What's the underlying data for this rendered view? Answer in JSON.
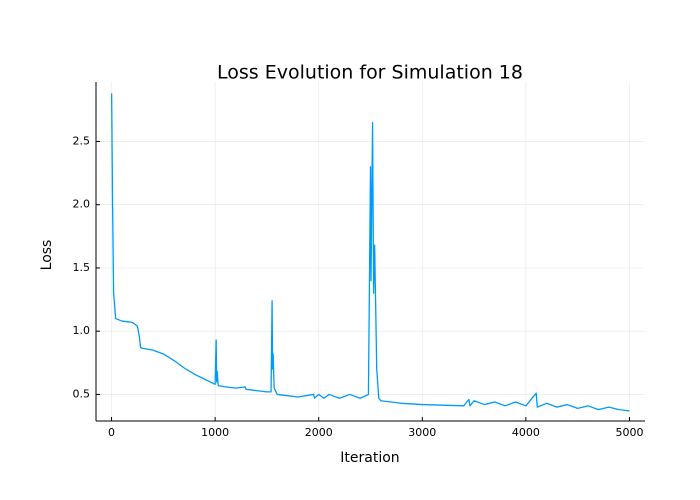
{
  "chart_data": {
    "type": "line",
    "title": "Loss Evolution for Simulation 18",
    "x_label": "Iteration",
    "y_label": "Loss",
    "x": [
      1,
      10,
      20,
      40,
      100,
      200,
      250,
      270,
      280,
      300,
      400,
      500,
      600,
      700,
      800,
      900,
      950,
      1000,
      1010,
      1015,
      1020,
      1030,
      1100,
      1200,
      1290,
      1300,
      1400,
      1500,
      1540,
      1550,
      1555,
      1560,
      1570,
      1600,
      1700,
      1800,
      1950,
      1960,
      2000,
      2050,
      2100,
      2200,
      2300,
      2400,
      2480,
      2500,
      2505,
      2520,
      2530,
      2540,
      2550,
      2560,
      2580,
      2600,
      2800,
      3000,
      3200,
      3400,
      3450,
      3460,
      3500,
      3600,
      3700,
      3800,
      3900,
      4000,
      4100,
      4110,
      4200,
      4300,
      4400,
      4500,
      4600,
      4700,
      4800,
      4900,
      5000
    ],
    "values": [
      2.88,
      2.0,
      1.3,
      1.1,
      1.08,
      1.07,
      1.04,
      0.95,
      0.87,
      0.865,
      0.85,
      0.82,
      0.77,
      0.71,
      0.66,
      0.62,
      0.6,
      0.58,
      0.93,
      0.6,
      0.68,
      0.57,
      0.56,
      0.55,
      0.56,
      0.54,
      0.53,
      0.52,
      0.52,
      1.24,
      0.7,
      0.82,
      0.55,
      0.5,
      0.49,
      0.48,
      0.5,
      0.47,
      0.5,
      0.47,
      0.5,
      0.47,
      0.5,
      0.47,
      0.5,
      2.3,
      1.4,
      2.65,
      1.3,
      1.68,
      1.2,
      0.7,
      0.47,
      0.45,
      0.43,
      0.42,
      0.415,
      0.41,
      0.46,
      0.41,
      0.45,
      0.42,
      0.44,
      0.41,
      0.44,
      0.41,
      0.51,
      0.4,
      0.43,
      0.4,
      0.42,
      0.39,
      0.41,
      0.38,
      0.4,
      0.38,
      0.37
    ],
    "color": "#009af9",
    "xlim": [
      -150,
      5150
    ],
    "xticks": [
      0,
      1000,
      2000,
      3000,
      4000,
      5000
    ],
    "ylim": [
      0.29,
      2.97
    ],
    "yticks": [
      0.5,
      {
        "value": 1,
        "label": "1.0"
      },
      1.5,
      {
        "value": 2,
        "label": "2.0"
      },
      2.5
    ],
    "grid": true
  }
}
